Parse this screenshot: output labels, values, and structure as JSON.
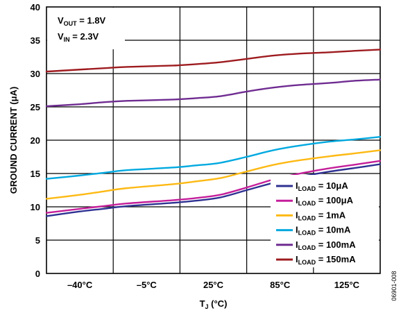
{
  "chart_data": {
    "type": "line",
    "categories": [
      "–40°C",
      "–5°C",
      "25°C",
      "85°C",
      "125°C"
    ],
    "x": [
      0,
      1,
      1.7,
      2.4,
      3.8,
      4.45,
      5.2,
      6.0,
      6.8,
      7.6,
      8.5,
      9.2,
      10.0
    ],
    "ylim": [
      0,
      40
    ],
    "yticks": [
      0,
      5,
      10,
      15,
      20,
      25,
      30,
      35,
      40
    ],
    "ylabel": "GROUND CURRENT (μA)",
    "xlabel": {
      "main": "T",
      "sub": "J",
      "suffix": " (°C)"
    },
    "annotations": [
      {
        "main": "V",
        "sub": "OUT",
        "suffix": " = 1.8V"
      },
      {
        "main": "V",
        "sub": "IN",
        "suffix": " = 2.3V"
      }
    ],
    "grid": true,
    "legend_position": "bottom-right",
    "series": [
      {
        "name": {
          "main": "I",
          "sub": "LOAD",
          "suffix": " = 10μA"
        },
        "color": "#2E3192",
        "values": [
          8.6,
          9.3,
          9.7,
          10.1,
          10.6,
          10.9,
          11.4,
          12.5,
          13.6,
          14.5,
          15.3,
          15.8,
          16.4
        ]
      },
      {
        "name": {
          "main": "I",
          "sub": "LOAD",
          "suffix": " = 100μA"
        },
        "color": "#C41E9A",
        "values": [
          9.1,
          9.7,
          10.1,
          10.5,
          11.0,
          11.3,
          11.8,
          12.9,
          14.1,
          15.0,
          15.8,
          16.3,
          16.9
        ]
      },
      {
        "name": {
          "main": "I",
          "sub": "LOAD",
          "suffix": " = 1mA"
        },
        "color": "#FDB913",
        "values": [
          11.2,
          11.8,
          12.3,
          12.8,
          13.4,
          13.8,
          14.3,
          15.3,
          16.3,
          17.0,
          17.6,
          18.0,
          18.5
        ]
      },
      {
        "name": {
          "main": "I",
          "sub": "LOAD",
          "suffix": " = 10mA"
        },
        "color": "#00A9E0",
        "values": [
          14.2,
          14.7,
          15.1,
          15.5,
          15.9,
          16.2,
          16.6,
          17.5,
          18.5,
          19.2,
          19.8,
          20.1,
          20.5
        ]
      },
      {
        "name": {
          "main": "I",
          "sub": "LOAD",
          "suffix": " = 100mA"
        },
        "color": "#6F2C91",
        "values": [
          25.1,
          25.4,
          25.7,
          25.9,
          26.1,
          26.3,
          26.6,
          27.3,
          27.9,
          28.3,
          28.6,
          28.9,
          29.1
        ]
      },
      {
        "name": {
          "main": "I",
          "sub": "LOAD",
          "suffix": " = 150mA"
        },
        "color": "#9E1B1F",
        "values": [
          30.3,
          30.6,
          30.8,
          31.0,
          31.2,
          31.4,
          31.7,
          32.2,
          32.7,
          33.0,
          33.2,
          33.4,
          33.6
        ]
      }
    ],
    "figure_id": "06901-008"
  }
}
